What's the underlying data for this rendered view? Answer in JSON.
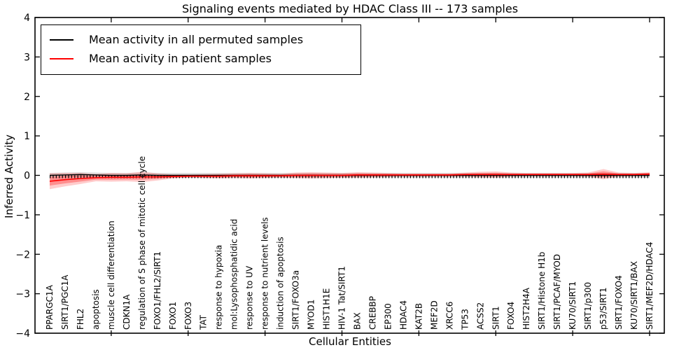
{
  "chart_data": {
    "type": "line",
    "title": "Signaling events mediated by HDAC Class III -- 173 samples",
    "xlabel": "Cellular Entities",
    "ylabel": "Inferred Activity",
    "ylim": [
      -4,
      4
    ],
    "ytick_labels": [
      "4",
      "3",
      "2",
      "1",
      "0",
      "−1",
      "−2",
      "−3",
      "−4"
    ],
    "ytick_values": [
      4,
      3,
      2,
      1,
      0,
      -1,
      -2,
      -3,
      -4
    ],
    "xtick_every": 5,
    "grid": "off",
    "legend_position": "upper-left",
    "entities": [
      "PPARGC1A",
      "SIRT1/PGC1A",
      "FHL2",
      "apoptosis",
      "muscle cell differentiation",
      "CDKN1A",
      "regulation of S phase of mitotic cell cycle",
      "FOXO1/FHL2/SIRT1",
      "FOXO1",
      "FOXO3",
      "TAT",
      "response to hypoxia",
      "mol:Lysophosphatidic acid",
      "response to UV",
      "response to nutrient levels",
      "induction of apoptosis",
      "SIRT1/FOXO3a",
      "MYOD1",
      "HIST1H1E",
      "HIV-1 Tat/SIRT1",
      "BAX",
      "CREBBP",
      "EP300",
      "HDAC4",
      "KAT2B",
      "MEF2D",
      "XRCC6",
      "TP53",
      "ACSS2",
      "SIRT1",
      "FOXO4",
      "HIST2H4A",
      "SIRT1/Histone H1b",
      "SIRT1/PCAF/MYOD",
      "KU70/SIRT1",
      "SIRT1/p300",
      "p53/SIRT1",
      "SIRT1/FOXO4",
      "KU70/SIRT1/BAX",
      "SIRT1/MEF2D/HDAC4"
    ],
    "series": [
      {
        "name": "Mean activity in all permuted samples",
        "color": "#000000",
        "values": [
          0.0,
          0.01,
          0.02,
          0.01,
          0.0,
          0.0,
          0.01,
          0.0,
          0.0,
          0.0,
          0.0,
          0.0,
          0.0,
          0.0,
          0.0,
          0.0,
          0.0,
          0.0,
          0.0,
          0.0,
          0.0,
          0.0,
          0.0,
          0.0,
          0.0,
          0.0,
          0.0,
          0.0,
          0.0,
          0.0,
          0.0,
          0.0,
          0.0,
          0.0,
          0.0,
          0.0,
          0.0,
          0.0,
          0.0,
          0.0
        ],
        "std": [
          0.06,
          0.06,
          0.06,
          0.06,
          0.06,
          0.06,
          0.06,
          0.06,
          0.06,
          0.06,
          0.06,
          0.06,
          0.06,
          0.06,
          0.06,
          0.06,
          0.06,
          0.06,
          0.06,
          0.06,
          0.06,
          0.06,
          0.06,
          0.06,
          0.06,
          0.06,
          0.06,
          0.06,
          0.06,
          0.06,
          0.06,
          0.06,
          0.06,
          0.06,
          0.06,
          0.06,
          0.06,
          0.06,
          0.06,
          0.06
        ],
        "band_color": "#dcdcdc"
      },
      {
        "name": "Mean activity in patient samples",
        "color": "#ff0000",
        "values": [
          -0.15,
          -0.11,
          -0.08,
          -0.06,
          -0.05,
          -0.05,
          -0.04,
          -0.04,
          -0.03,
          -0.02,
          -0.02,
          -0.02,
          -0.01,
          -0.01,
          -0.01,
          -0.01,
          0.0,
          0.0,
          0.0,
          0.0,
          0.01,
          0.01,
          0.01,
          0.01,
          0.01,
          0.01,
          0.01,
          0.02,
          0.02,
          0.02,
          0.02,
          0.02,
          0.02,
          0.02,
          0.02,
          0.02,
          0.03,
          0.02,
          0.02,
          0.03
        ],
        "std": [
          0.2,
          0.17,
          0.14,
          0.09,
          0.11,
          0.1,
          0.13,
          0.09,
          0.05,
          0.04,
          0.05,
          0.06,
          0.06,
          0.07,
          0.06,
          0.05,
          0.07,
          0.08,
          0.07,
          0.06,
          0.07,
          0.06,
          0.05,
          0.04,
          0.04,
          0.04,
          0.04,
          0.05,
          0.07,
          0.08,
          0.05,
          0.04,
          0.04,
          0.04,
          0.04,
          0.05,
          0.13,
          0.05,
          0.04,
          0.05
        ],
        "band_color": "rgba(255,0,0,0.20)"
      }
    ]
  }
}
